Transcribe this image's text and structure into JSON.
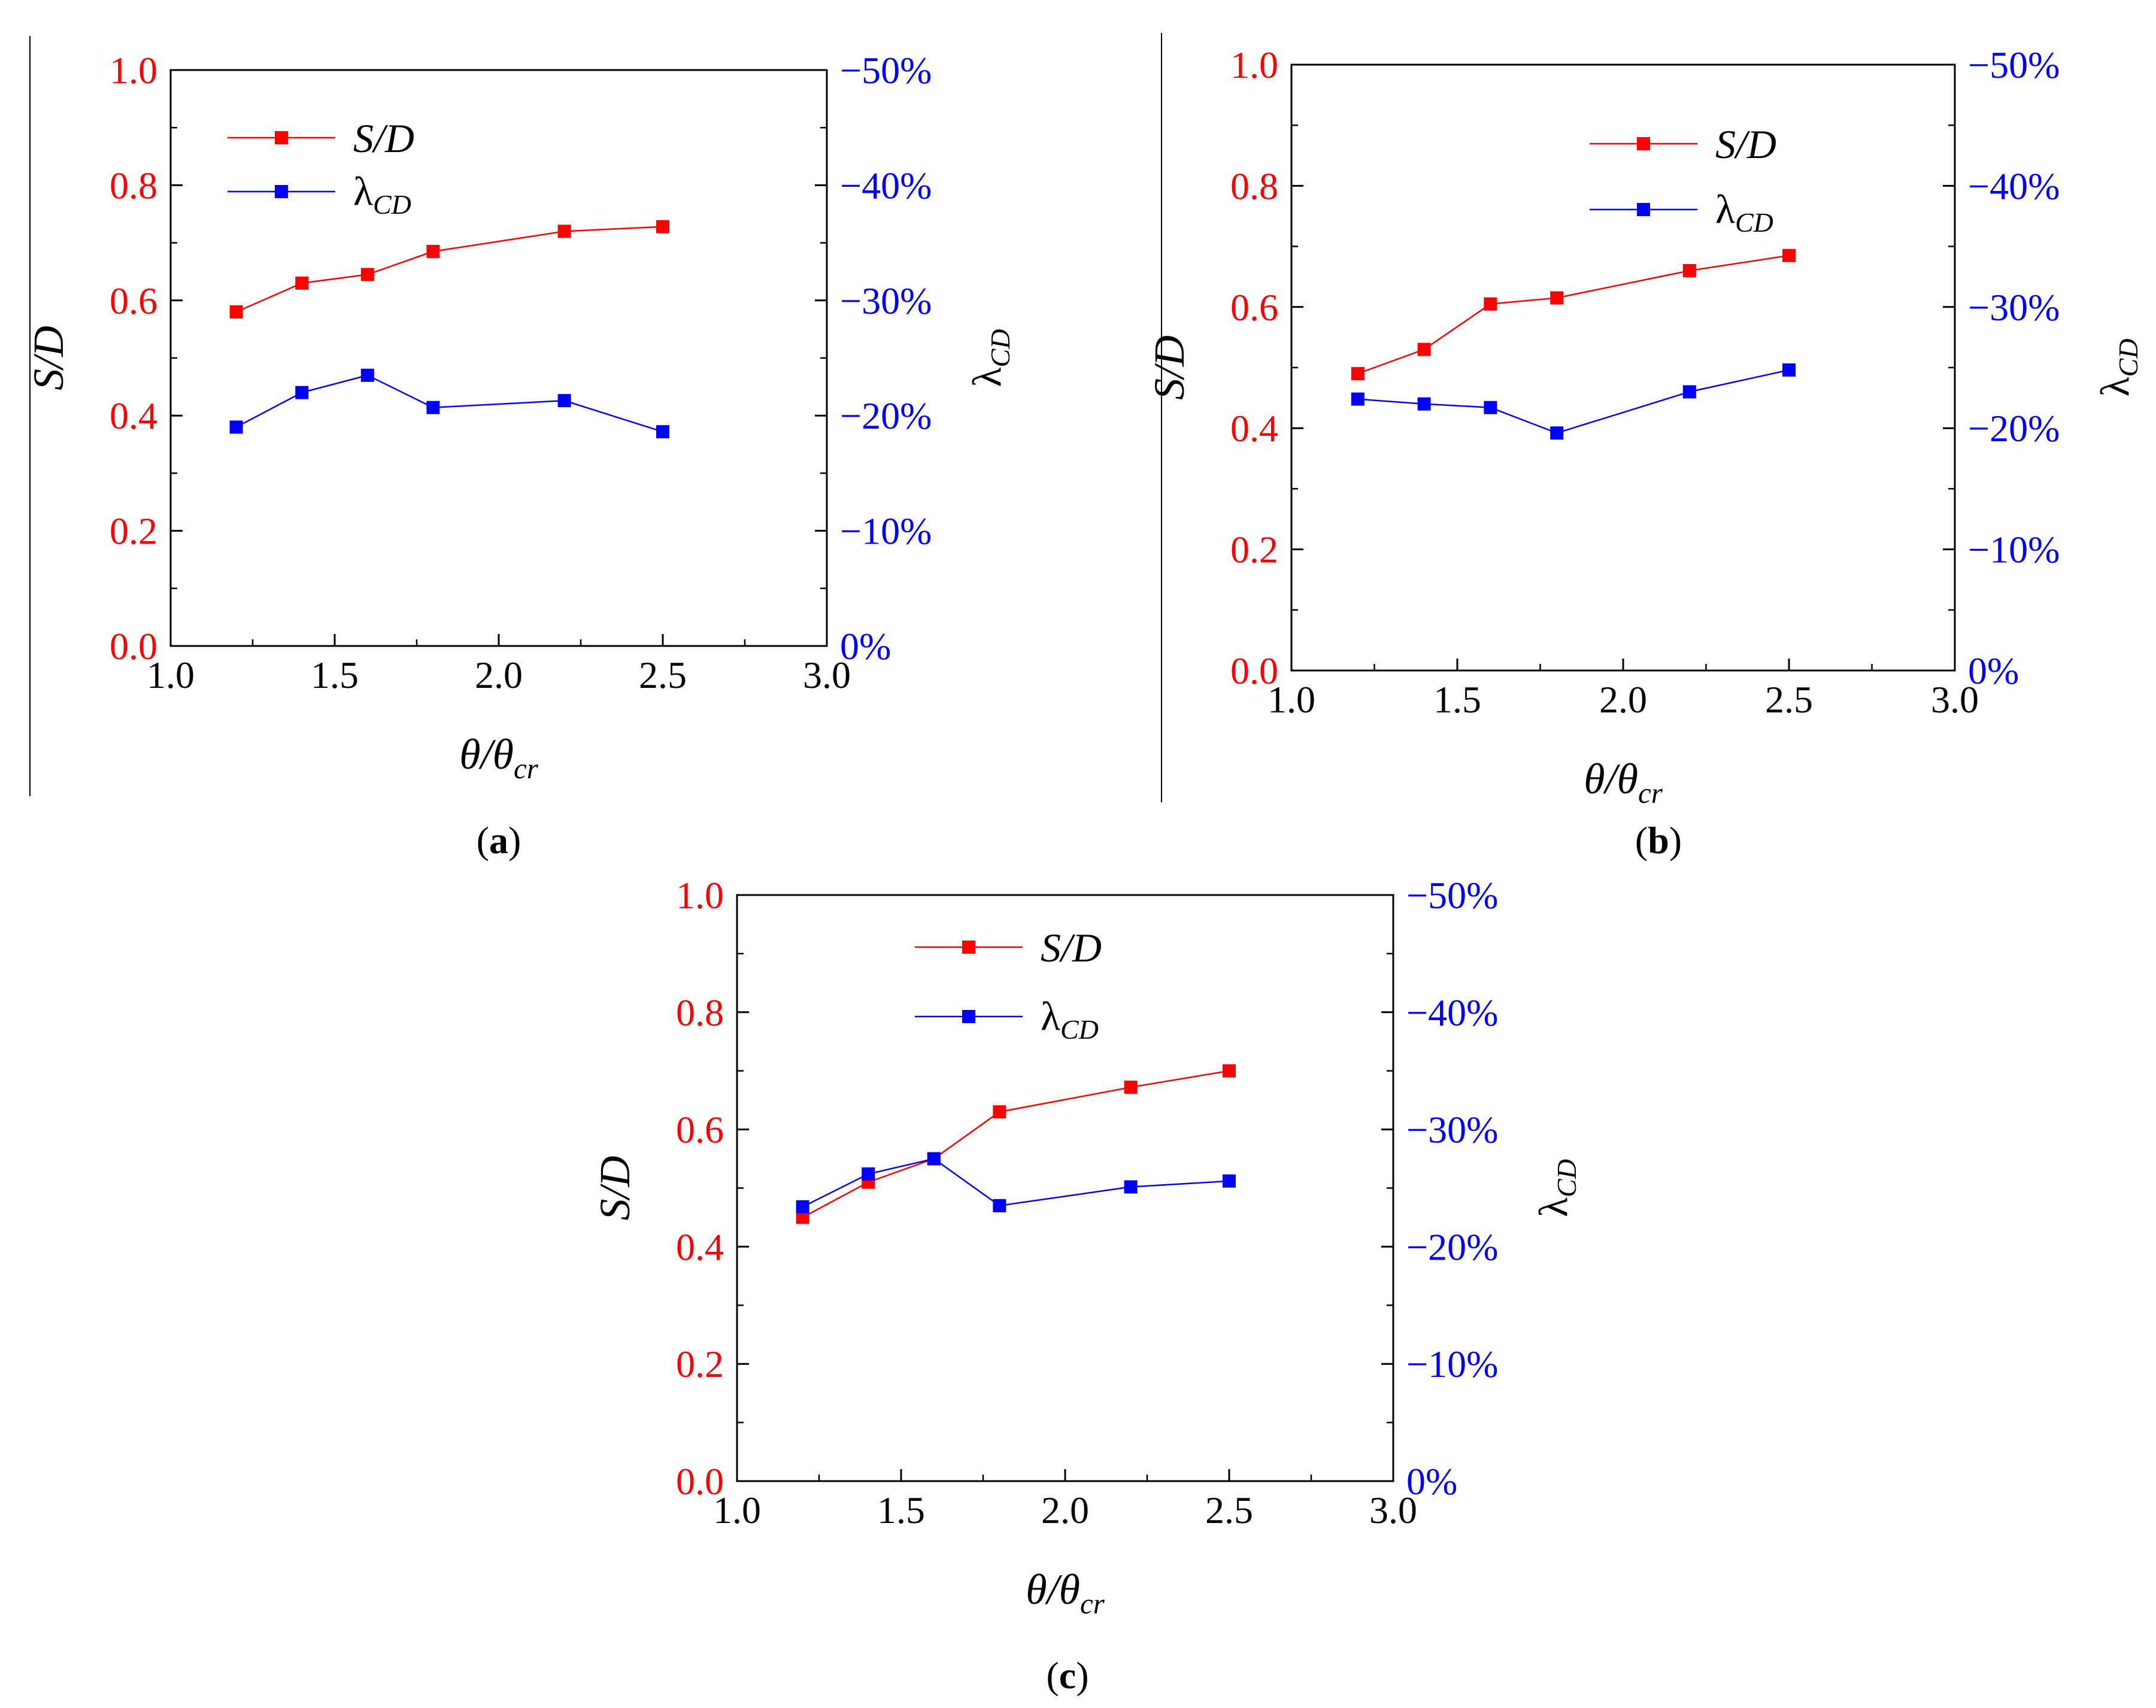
{
  "figure": {
    "x_tick_labels": [
      "1.0",
      "1.5",
      "2.0",
      "2.5",
      "3.0"
    ],
    "y_left_tick_labels": [
      "0.0",
      "0.2",
      "0.4",
      "0.6",
      "0.8",
      "1.0"
    ],
    "y_right_tick_labels": [
      "0%",
      "−10%",
      "−20%",
      "−30%",
      "−40%",
      "−50%"
    ]
  },
  "colors": {
    "sd": "#ff0000",
    "lambda": "#0000ff",
    "axis": "#000000"
  },
  "chart_data": [
    {
      "type": "line",
      "panel_label": "a",
      "xlabel": "θ/θcr",
      "ylabel_left": "S/D",
      "ylabel_right": "λCD",
      "xlim": [
        1.0,
        3.0
      ],
      "ylim_left": [
        0.0,
        1.0
      ],
      "ylim_right": [
        0,
        -50
      ],
      "x": [
        1.2,
        1.4,
        1.6,
        1.8,
        2.2,
        2.5
      ],
      "series": [
        {
          "name": "S/D",
          "axis": "left",
          "values": [
            0.58,
            0.63,
            0.645,
            0.685,
            0.72,
            0.728
          ]
        },
        {
          "name": "λCD",
          "axis": "right",
          "values": [
            -19,
            -22,
            -23.5,
            -20.7,
            -21.3,
            -18.6
          ]
        }
      ],
      "legend": [
        "S/D",
        "λCD"
      ],
      "legend_position": "top-left"
    },
    {
      "type": "line",
      "panel_label": "b",
      "xlabel": "θ/θcr",
      "ylabel_left": "S/D",
      "ylabel_right": "λCD",
      "xlim": [
        1.0,
        3.0
      ],
      "ylim_left": [
        0.0,
        1.0
      ],
      "ylim_right": [
        0,
        -50
      ],
      "x": [
        1.2,
        1.4,
        1.6,
        1.8,
        2.2,
        2.5
      ],
      "series": [
        {
          "name": "S/D",
          "axis": "left",
          "values": [
            0.49,
            0.53,
            0.605,
            0.615,
            0.66,
            0.685
          ]
        },
        {
          "name": "λCD",
          "axis": "right",
          "values": [
            -22.4,
            -22,
            -21.7,
            -19.6,
            -23,
            -24.8
          ]
        }
      ],
      "legend": [
        "S/D",
        "λCD"
      ],
      "legend_position": "top-right"
    },
    {
      "type": "line",
      "panel_label": "c",
      "xlabel": "θ/θcr",
      "ylabel_left": "S/D",
      "ylabel_right": "λCD",
      "xlim": [
        1.0,
        3.0
      ],
      "ylim_left": [
        0.0,
        1.0
      ],
      "ylim_right": [
        0,
        -50
      ],
      "x": [
        1.2,
        1.4,
        1.6,
        1.8,
        2.2,
        2.5
      ],
      "series": [
        {
          "name": "S/D",
          "axis": "left",
          "values": [
            0.45,
            0.51,
            0.55,
            0.63,
            0.672,
            0.7
          ]
        },
        {
          "name": "λCD",
          "axis": "right",
          "values": [
            -23.4,
            -26.2,
            -27.5,
            -23.5,
            -25.1,
            -25.6
          ]
        }
      ],
      "legend": [
        "S/D",
        "λCD"
      ],
      "legend_position": "top-center"
    }
  ]
}
